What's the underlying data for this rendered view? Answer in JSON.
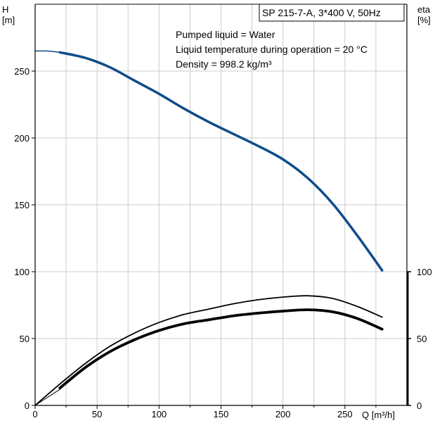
{
  "chart_data": {
    "type": "line",
    "title": "SP 215-7-A, 3*400 V, 50Hz",
    "annotations": [
      "Pumped liquid = Water",
      "Liquid temperature during operation = 20 °C",
      "Density = 998.2 kg/m³"
    ],
    "xlabel": "Q [m³/h]",
    "ylabel_left": [
      "H",
      "[m]"
    ],
    "ylabel_right": [
      "eta",
      "[%]"
    ],
    "xlim": [
      0,
      300
    ],
    "ylim_left": [
      0,
      300
    ],
    "ylim_right": [
      0,
      300
    ],
    "x_ticks": [
      "0",
      "50",
      "100",
      "150",
      "200",
      "250"
    ],
    "x_tick_values": [
      0,
      50,
      100,
      150,
      200,
      250
    ],
    "y_left_ticks": [
      "0",
      "50",
      "100",
      "150",
      "200",
      "250"
    ],
    "y_left_tick_values": [
      0,
      50,
      100,
      150,
      200,
      250
    ],
    "y_right_ticks": [
      "0",
      "50",
      "100"
    ],
    "y_right_tick_values": [
      0,
      50,
      100
    ],
    "grid": true,
    "colors": {
      "head": "#0f4c8a",
      "eta": "#000000",
      "grid": "#cccccc",
      "axis": "#000000"
    },
    "series": [
      {
        "axis": "left",
        "color": "#0f4c8a",
        "stroke_width": 3.5,
        "x": [
          20,
          40,
          60,
          80,
          100,
          120,
          140,
          160,
          180,
          200,
          220,
          240,
          260,
          280
        ],
        "y": [
          264,
          260,
          253,
          243,
          233,
          222,
          212,
          203,
          194,
          184,
          170,
          151,
          127,
          101
        ]
      },
      {
        "axis": "left",
        "color": "#0f4c8a",
        "stroke_width": 1.5,
        "x": [
          0,
          10,
          20
        ],
        "y": [
          265,
          265,
          264
        ]
      },
      {
        "axis": "right",
        "color": "#000000",
        "stroke_width": 1.8,
        "x": [
          0,
          20,
          40,
          60,
          80,
          100,
          120,
          140,
          160,
          180,
          200,
          220,
          240,
          260,
          280
        ],
        "y": [
          0,
          16,
          31,
          44,
          54,
          62,
          68,
          72,
          76,
          79,
          81,
          82,
          80,
          74,
          66
        ]
      },
      {
        "axis": "right",
        "color": "#000000",
        "stroke_width": 3.8,
        "x": [
          20,
          40,
          60,
          80,
          100,
          120,
          140,
          160,
          180,
          200,
          220,
          240,
          260,
          280
        ],
        "y": [
          13,
          28,
          40,
          49,
          56,
          61,
          64,
          67,
          69,
          70.5,
          71.5,
          70,
          65,
          57
        ]
      },
      {
        "axis": "right",
        "color": "#000000",
        "stroke_width": 1.0,
        "x": [
          0,
          20
        ],
        "y": [
          0,
          12
        ]
      }
    ]
  }
}
